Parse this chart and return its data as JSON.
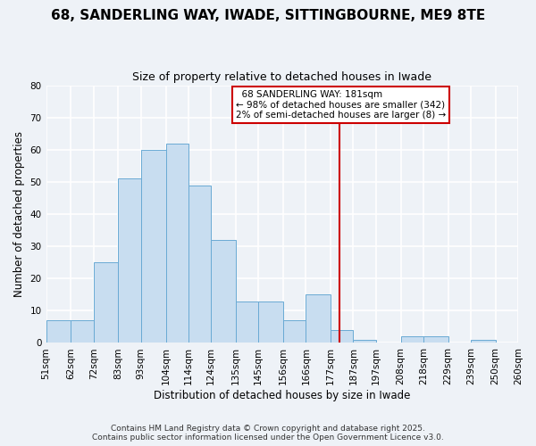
{
  "title": "68, SANDERLING WAY, IWADE, SITTINGBOURNE, ME9 8TE",
  "subtitle": "Size of property relative to detached houses in Iwade",
  "xlabel": "Distribution of detached houses by size in Iwade",
  "ylabel": "Number of detached properties",
  "bin_edges": [
    51,
    62,
    72,
    83,
    93,
    104,
    114,
    124,
    135,
    145,
    156,
    166,
    177,
    187,
    197,
    208,
    218,
    229,
    239,
    250,
    260
  ],
  "bar_heights": [
    7,
    7,
    25,
    51,
    60,
    62,
    49,
    32,
    13,
    13,
    7,
    15,
    4,
    1,
    0,
    2,
    2,
    0,
    1,
    0
  ],
  "bar_color": "#c8ddf0",
  "bar_edge_color": "#6aaad4",
  "vline_x": 181,
  "vline_color": "#cc0000",
  "ylim": [
    0,
    80
  ],
  "yticks": [
    0,
    10,
    20,
    30,
    40,
    50,
    60,
    70,
    80
  ],
  "annotation_title": "68 SANDERLING WAY: 181sqm",
  "annotation_line1": "← 98% of detached houses are smaller (342)",
  "annotation_line2": "2% of semi-detached houses are larger (8) →",
  "footer_line1": "Contains HM Land Registry data © Crown copyright and database right 2025.",
  "footer_line2": "Contains public sector information licensed under the Open Government Licence v3.0.",
  "background_color": "#eef2f7",
  "grid_color": "#ffffff",
  "annotation_box_color": "#ffffff",
  "annotation_border_color": "#cc0000",
  "title_fontsize": 11,
  "subtitle_fontsize": 9,
  "axis_label_fontsize": 8.5,
  "tick_fontsize": 7.5,
  "annotation_fontsize": 7.5,
  "footer_fontsize": 6.5
}
